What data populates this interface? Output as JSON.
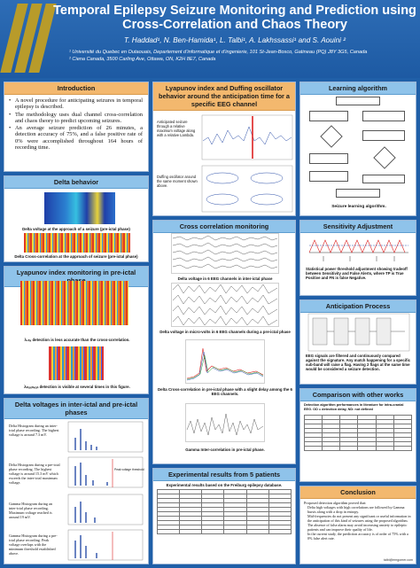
{
  "header": {
    "title": "Temporal Epilepsy Seizure Monitoring and Prediction using Cross-Correlation and Chaos Theory",
    "authors": "T. Haddad¹, N. Ben-Hamida¹, L. Talbi¹, A. Lakhssassi¹ and S. Aouini ²",
    "affiliation1": "¹ Université du Quebec en Outaouais, Departement d’informatique et d’ingenierie, 101 St-Jean-Bosco, Gatineau (PQ) J8Y 3G5, Canada",
    "affiliation2": "² Ciena Canada, 3500 Carling Ave, Ottawa, ON, K2H 8E7, Canada"
  },
  "introduction": {
    "heading": "Introduction",
    "bullets": [
      "A novel procedure for anticipating seizures in temporal epilepsy is described.",
      "The methodology uses dual channel cross-correlation and chaos theory to predict upcoming seizures.",
      "An average seizure prediction of 26 minutes, a detection accuracy of 75%, and a false positive rate of 0% were accomplished throughout 164 hours of recording time."
    ]
  },
  "delta_behavior": {
    "heading": "Delta behavior",
    "cap1": "Delta voltage at the approach of a seizure (pre-ictal phase)",
    "cap2": "Delta Cross-correlation at the approach of seizure (pre-ictal phase)"
  },
  "lyapunov_pre": {
    "heading": "Lyapunov index monitoring in pre-ictal phase",
    "cap1": "λ₀ₕₓ detection is less accurate than the cross-correlation.",
    "cap2": "λₘₐₓₘₑₐₙ detection is visible at several times in this figure."
  },
  "delta_voltages": {
    "heading": "Delta voltages in inter-ictal and pre-ictal phases",
    "items": [
      "Delta Histogram during an inter-ictal phase recording. The highest voltage is around 7.3 mV.",
      "Delta Histogram during a pre-ictal phase recording. The highest voltage is around 15.3 mV which exceeds the inter-ictal maximum voltage.",
      "Gamma Histogram during an inter-ictal phase recording. Maximum voltage reached is around 19 mV.",
      "Gamma Histogram during a pre-ictal phase recording. Peak voltage overlaps with the minimum threshold established above."
    ],
    "label_peak": "Peak voltage threshold"
  },
  "lyapunov_duffing": {
    "heading": "Lyapunov index and Duffing oscillator behavior around the anticipation time for a specific EEG channel",
    "note1": "Anticipated seizure through a relative maximum voltage along with a relative Lambda.",
    "note2": "Duffing oscillator around the same moment shown above."
  },
  "cross_corr": {
    "heading": "Cross correlation monitoring",
    "cap1": "Delta voltage in 6 EEG channels in inter-ictal phase",
    "cap2": "Delta voltage in micro-volts in 6 EEG channels during a pre-ictal phase",
    "cap3": "Delta Cross-correlation in pre-ictal phase with a slight delay among the 6 EEG channels.",
    "cap4": "Gamma Inter-correlation in pre-ictal phase."
  },
  "experimental": {
    "heading": "Experimental results from 5 patients",
    "subtitle": "Experimental results based on the Freiburg epilepsy database."
  },
  "learning": {
    "heading": "Learning algorithm",
    "caption": "Seizure learning algorithm."
  },
  "sensitivity": {
    "heading": "Sensitivity Adjustment",
    "text": "Statistical power threshold adjustment showing tradeoff between Sensitivity and False Alerts, where TP is True Positive and FN is false Negative."
  },
  "anticipation": {
    "heading": "Anticipation Process",
    "text": "EEG signals are filtered and continuously compared against the signature. Any match happening for a specific sub-band will raise a flag. Having 2 flags at the same time would be considered a seizure detection."
  },
  "comparison": {
    "heading": "Comparison with other works",
    "subtitle": "Detection algorithm performances in literature for intra-cranial EEG. OD = detection delay, ND: not defined"
  },
  "conclusion": {
    "heading": "Conclusion",
    "lead": "Proposed detection algorithm proved that:",
    "bullets": [
      "Delta high voltages with high correlations are followed by Gamma bursts along with a drop in entropy.",
      "Mid-frequencies do not present any significant or useful information in the anticipation of this kind of seizures using the proposed algorithm.",
      "The absence of false alarm may avoid increasing anxiety to epileptic patients and can improve their quality of life.",
      "In the current study, the prediction accuracy is of order of 75% with a 0% false alert rate."
    ],
    "email": "talbi@emgomer.com"
  }
}
